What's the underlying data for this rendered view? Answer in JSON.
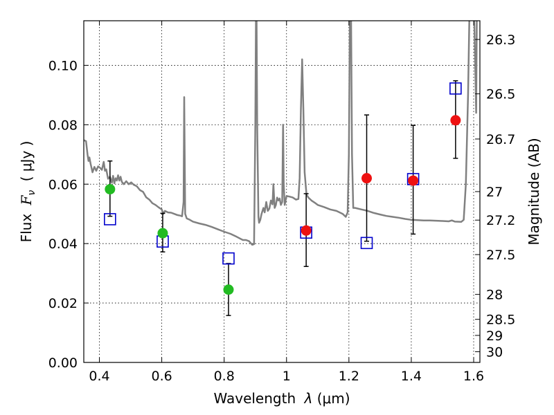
{
  "chart_data": {
    "type": "scatter",
    "xlabel": "Wavelength",
    "xlabel_symbol": "λ",
    "xlabel_unit": "(μm)",
    "ylabel": "Flux",
    "ylabel_symbol": "F",
    "ylabel_subscript": "ν",
    "ylabel_unit": "( μJy )",
    "ylabel_right": "Magnitude (AB)",
    "xlim": [
      0.35,
      1.62
    ],
    "ylim": [
      0.0,
      0.115
    ],
    "grid": true,
    "x_ticks": [
      0.4,
      0.6,
      0.8,
      1.0,
      1.2,
      1.4,
      1.6
    ],
    "x_tick_labels": [
      "0.4",
      "0.6",
      "0.8",
      "1",
      "1.2",
      "1.4",
      "1.6"
    ],
    "y_ticks": [
      0.0,
      0.02,
      0.04,
      0.06,
      0.08,
      0.1
    ],
    "y_tick_labels": [
      "0.00",
      "0.02",
      "0.04",
      "0.06",
      "0.08",
      "0.10"
    ],
    "right_ticks": [
      {
        "label": "26.3",
        "flux": 0.1087
      },
      {
        "label": "26.5",
        "flux": 0.0904
      },
      {
        "label": "26.7",
        "flux": 0.0752
      },
      {
        "label": "27",
        "flux": 0.0575
      },
      {
        "label": "27.2",
        "flux": 0.0479
      },
      {
        "label": "27.5",
        "flux": 0.0363
      },
      {
        "label": "28",
        "flux": 0.0229
      },
      {
        "label": "28.5",
        "flux": 0.0145
      },
      {
        "label": "29",
        "flux": 0.0091
      },
      {
        "label": "30",
        "flux": 0.0036
      }
    ],
    "series": [
      {
        "type": "line",
        "color": "#808080",
        "points": [
          [
            0.35,
            0.0748
          ],
          [
            0.357,
            0.0745
          ],
          [
            0.362,
            0.07
          ],
          [
            0.365,
            0.0678
          ],
          [
            0.368,
            0.069
          ],
          [
            0.372,
            0.0668
          ],
          [
            0.378,
            0.064
          ],
          [
            0.384,
            0.0658
          ],
          [
            0.39,
            0.0645
          ],
          [
            0.396,
            0.066
          ],
          [
            0.402,
            0.0655
          ],
          [
            0.408,
            0.0648
          ],
          [
            0.414,
            0.0675
          ],
          [
            0.418,
            0.0645
          ],
          [
            0.422,
            0.065
          ],
          [
            0.428,
            0.0618
          ],
          [
            0.434,
            0.0625
          ],
          [
            0.44,
            0.0605
          ],
          [
            0.444,
            0.0628
          ],
          [
            0.448,
            0.0603
          ],
          [
            0.452,
            0.062
          ],
          [
            0.456,
            0.0612
          ],
          [
            0.46,
            0.063
          ],
          [
            0.464,
            0.0612
          ],
          [
            0.468,
            0.0625
          ],
          [
            0.472,
            0.0608
          ],
          [
            0.478,
            0.06
          ],
          [
            0.486,
            0.061
          ],
          [
            0.494,
            0.06
          ],
          [
            0.502,
            0.0606
          ],
          [
            0.51,
            0.0598
          ],
          [
            0.52,
            0.0593
          ],
          [
            0.53,
            0.058
          ],
          [
            0.54,
            0.0574
          ],
          [
            0.55,
            0.0556
          ],
          [
            0.56,
            0.0548
          ],
          [
            0.57,
            0.0536
          ],
          [
            0.58,
            0.053
          ],
          [
            0.59,
            0.0522
          ],
          [
            0.6,
            0.0515
          ],
          [
            0.605,
            0.05
          ],
          [
            0.61,
            0.051
          ],
          [
            0.62,
            0.0505
          ],
          [
            0.63,
            0.0504
          ],
          [
            0.64,
            0.05
          ],
          [
            0.65,
            0.0496
          ],
          [
            0.66,
            0.0494
          ],
          [
            0.665,
            0.0492
          ],
          [
            0.67,
            0.054
          ],
          [
            0.672,
            0.0893
          ],
          [
            0.675,
            0.05
          ],
          [
            0.68,
            0.0485
          ],
          [
            0.69,
            0.048
          ],
          [
            0.7,
            0.0474
          ],
          [
            0.72,
            0.0468
          ],
          [
            0.74,
            0.0463
          ],
          [
            0.76,
            0.0456
          ],
          [
            0.78,
            0.0448
          ],
          [
            0.8,
            0.044
          ],
          [
            0.82,
            0.0433
          ],
          [
            0.84,
            0.0423
          ],
          [
            0.86,
            0.0412
          ],
          [
            0.87,
            0.0412
          ],
          [
            0.88,
            0.0408
          ],
          [
            0.89,
            0.0396
          ],
          [
            0.896,
            0.0398
          ],
          [
            0.9,
            0.08
          ],
          [
            0.902,
            0.115
          ],
          [
            0.904,
            0.115
          ],
          [
            0.906,
            0.08
          ],
          [
            0.91,
            0.049
          ],
          [
            0.912,
            0.047
          ],
          [
            0.916,
            0.048
          ],
          [
            0.92,
            0.05
          ],
          [
            0.926,
            0.052
          ],
          [
            0.93,
            0.0505
          ],
          [
            0.935,
            0.054
          ],
          [
            0.94,
            0.051
          ],
          [
            0.945,
            0.0518
          ],
          [
            0.95,
            0.0545
          ],
          [
            0.955,
            0.0532
          ],
          [
            0.958,
            0.06
          ],
          [
            0.962,
            0.052
          ],
          [
            0.966,
            0.053
          ],
          [
            0.97,
            0.0555
          ],
          [
            0.974,
            0.0545
          ],
          [
            0.978,
            0.0552
          ],
          [
            0.982,
            0.053
          ],
          [
            0.986,
            0.054
          ],
          [
            0.989,
            0.08
          ],
          [
            0.991,
            0.06
          ],
          [
            0.994,
            0.053
          ],
          [
            1.0,
            0.056
          ],
          [
            1.01,
            0.0558
          ],
          [
            1.02,
            0.0555
          ],
          [
            1.03,
            0.0548
          ],
          [
            1.038,
            0.055
          ],
          [
            1.042,
            0.062
          ],
          [
            1.046,
            0.085
          ],
          [
            1.05,
            0.102
          ],
          [
            1.054,
            0.085
          ],
          [
            1.058,
            0.064
          ],
          [
            1.064,
            0.0565
          ],
          [
            1.07,
            0.0555
          ],
          [
            1.08,
            0.0545
          ],
          [
            1.09,
            0.0538
          ],
          [
            1.1,
            0.053
          ],
          [
            1.12,
            0.0523
          ],
          [
            1.14,
            0.0515
          ],
          [
            1.16,
            0.051
          ],
          [
            1.18,
            0.05
          ],
          [
            1.19,
            0.049
          ],
          [
            1.196,
            0.0505
          ],
          [
            1.2,
            0.07
          ],
          [
            1.203,
            0.115
          ],
          [
            1.207,
            0.115
          ],
          [
            1.21,
            0.07
          ],
          [
            1.214,
            0.052
          ],
          [
            1.22,
            0.052
          ],
          [
            1.24,
            0.0515
          ],
          [
            1.26,
            0.051
          ],
          [
            1.28,
            0.0503
          ],
          [
            1.3,
            0.0498
          ],
          [
            1.32,
            0.0493
          ],
          [
            1.34,
            0.049
          ],
          [
            1.36,
            0.0487
          ],
          [
            1.38,
            0.0483
          ],
          [
            1.4,
            0.048
          ],
          [
            1.42,
            0.0479
          ],
          [
            1.44,
            0.0478
          ],
          [
            1.46,
            0.0478
          ],
          [
            1.48,
            0.0477
          ],
          [
            1.5,
            0.0476
          ],
          [
            1.52,
            0.0475
          ],
          [
            1.53,
            0.0478
          ],
          [
            1.54,
            0.0474
          ],
          [
            1.56,
            0.0473
          ],
          [
            1.568,
            0.048
          ],
          [
            1.575,
            0.06
          ],
          [
            1.582,
            0.09
          ],
          [
            1.586,
            0.115
          ]
        ],
        "spike": [
          [
            1.602,
            0.115
          ],
          [
            1.606,
            0.095
          ],
          [
            1.608,
            0.084
          ],
          [
            1.61,
            0.115
          ]
        ]
      },
      {
        "type": "errorbar",
        "color": "#000000",
        "points": [
          {
            "x": 0.434,
            "low": 0.0492,
            "high": 0.0678
          },
          {
            "x": 0.603,
            "low": 0.0372,
            "high": 0.0502
          },
          {
            "x": 0.814,
            "low": 0.0158,
            "high": 0.0333
          },
          {
            "x": 1.063,
            "low": 0.0323,
            "high": 0.0568
          },
          {
            "x": 1.257,
            "low": 0.0408,
            "high": 0.0833
          },
          {
            "x": 1.406,
            "low": 0.0432,
            "high": 0.0798
          },
          {
            "x": 1.542,
            "low": 0.0687,
            "high": 0.0948
          }
        ]
      },
      {
        "type": "square",
        "color": "#0000cc",
        "points": [
          [
            0.434,
            0.0482
          ],
          [
            0.603,
            0.0407
          ],
          [
            0.814,
            0.035
          ],
          [
            1.063,
            0.0437
          ],
          [
            1.257,
            0.0402
          ],
          [
            1.406,
            0.0617
          ],
          [
            1.542,
            0.0922
          ]
        ]
      },
      {
        "type": "circle",
        "color": "#22bb22",
        "points": [
          [
            0.434,
            0.0583
          ],
          [
            0.603,
            0.0435
          ],
          [
            0.814,
            0.0245
          ]
        ]
      },
      {
        "type": "circle",
        "color": "#ee1111",
        "points": [
          [
            1.063,
            0.0444
          ],
          [
            1.257,
            0.062
          ],
          [
            1.406,
            0.0612
          ],
          [
            1.542,
            0.0815
          ]
        ]
      }
    ]
  }
}
